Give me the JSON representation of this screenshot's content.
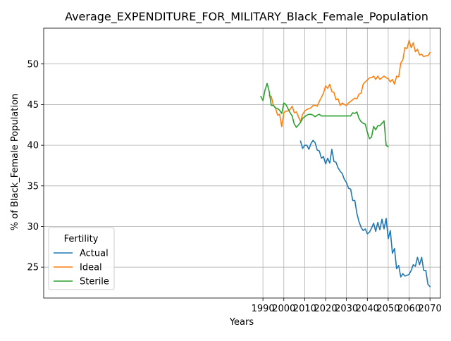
{
  "chart_data": {
    "type": "line",
    "title": "Average_EXPENDITURE_FOR_MILITARY_Black_Female_Population",
    "xlabel": "Years",
    "ylabel": "% of Black_Female Population",
    "xlim": [
      1885,
      2075
    ],
    "ylim": [
      21.2,
      54.4
    ],
    "xticks": [
      1990,
      2000,
      2010,
      2020,
      2030,
      2040,
      2050,
      2060,
      2070
    ],
    "yticks": [
      25,
      30,
      35,
      40,
      45,
      50
    ],
    "grid": true,
    "legend": {
      "title": "Fertility",
      "placement": "lower-left"
    },
    "series": [
      {
        "name": "Actual",
        "color": "#1f77b4",
        "x": [
          2008,
          2009,
          2010,
          2011,
          2012,
          2013,
          2014,
          2015,
          2016,
          2017,
          2018,
          2019,
          2020,
          2021,
          2022,
          2023,
          2024,
          2025,
          2026,
          2027,
          2028,
          2029,
          2030,
          2031,
          2032,
          2033,
          2034,
          2035,
          2036,
          2037,
          2038,
          2039,
          2040,
          2041,
          2042,
          2043,
          2044,
          2045,
          2046,
          2047,
          2048,
          2049,
          2050,
          2051,
          2052,
          2053,
          2054,
          2055,
          2056,
          2057,
          2058,
          2059,
          2060,
          2061,
          2062,
          2063,
          2064,
          2065,
          2066,
          2067,
          2068,
          2069,
          2070
        ],
        "y": [
          40.5,
          39.6,
          40.0,
          40.0,
          39.5,
          40.2,
          40.6,
          40.3,
          39.4,
          39.3,
          38.4,
          38.6,
          37.7,
          38.4,
          37.8,
          39.5,
          38.0,
          37.9,
          37.2,
          36.8,
          36.5,
          35.8,
          35.4,
          34.7,
          34.6,
          33.2,
          33.2,
          31.6,
          30.6,
          29.9,
          29.5,
          29.7,
          29.1,
          29.3,
          29.8,
          30.4,
          29.4,
          30.5,
          29.6,
          30.9,
          29.7,
          31.0,
          28.5,
          29.5,
          26.7,
          27.3,
          24.8,
          25.2,
          23.8,
          24.2,
          23.9,
          24.0,
          24.1,
          24.6,
          25.3,
          25.1,
          26.2,
          25.3,
          26.2,
          24.6,
          24.6,
          22.9,
          22.6
        ]
      },
      {
        "name": "Ideal",
        "color": "#ff7f0e",
        "x": [
          1993,
          1994,
          1995,
          1996,
          1997,
          1998,
          1999,
          2000,
          2001,
          2002,
          2003,
          2004,
          2005,
          2006,
          2007,
          2008,
          2009,
          2010,
          2011,
          2012,
          2013,
          2014,
          2015,
          2016,
          2017,
          2018,
          2019,
          2020,
          2021,
          2022,
          2023,
          2024,
          2025,
          2026,
          2027,
          2028,
          2029,
          2030,
          2031,
          2032,
          2033,
          2034,
          2035,
          2036,
          2037,
          2038,
          2039,
          2040,
          2041,
          2042,
          2043,
          2044,
          2045,
          2046,
          2047,
          2048,
          2049,
          2050,
          2051,
          2052,
          2053,
          2054,
          2055,
          2056,
          2057,
          2058,
          2059,
          2060,
          2061,
          2062,
          2063,
          2064,
          2065,
          2066,
          2067,
          2068,
          2069,
          2070
        ],
        "y": [
          46.1,
          46.0,
          44.9,
          44.6,
          43.7,
          43.8,
          42.3,
          44.0,
          44.2,
          44.2,
          44.4,
          44.8,
          44.0,
          44.1,
          43.5,
          42.9,
          43.8,
          44.2,
          44.4,
          44.5,
          44.6,
          44.9,
          44.9,
          44.8,
          45.4,
          45.9,
          46.4,
          47.3,
          47.0,
          47.5,
          46.6,
          46.5,
          45.6,
          45.7,
          44.9,
          45.2,
          45.0,
          44.9,
          45.2,
          45.4,
          45.6,
          45.8,
          45.7,
          46.3,
          46.4,
          47.5,
          47.8,
          48.0,
          48.3,
          48.3,
          48.5,
          48.1,
          48.5,
          48.1,
          48.3,
          48.5,
          48.3,
          48.2,
          47.8,
          48.1,
          47.5,
          48.5,
          48.4,
          50.1,
          50.5,
          52.0,
          51.9,
          52.9,
          52.0,
          52.6,
          51.5,
          51.8,
          51.1,
          51.2,
          50.9,
          51.0,
          51.0,
          51.4
        ]
      },
      {
        "name": "Sterile",
        "color": "#2ca02c",
        "x": [
          1989,
          1990,
          1991,
          1992,
          1993,
          1994,
          1995,
          1996,
          1997,
          1998,
          1999,
          2000,
          2001,
          2002,
          2003,
          2004,
          2005,
          2006,
          2007,
          2008,
          2009,
          2010,
          2011,
          2012,
          2013,
          2014,
          2015,
          2016,
          2017,
          2018,
          2019,
          2020,
          2021,
          2022,
          2023,
          2024,
          2025,
          2026,
          2027,
          2028,
          2029,
          2030,
          2031,
          2032,
          2033,
          2034,
          2035,
          2036,
          2037,
          2038,
          2039,
          2040,
          2041,
          2042,
          2043,
          2044,
          2045,
          2046,
          2047,
          2048,
          2049,
          2050
        ],
        "y": [
          46.0,
          45.5,
          46.8,
          47.6,
          46.6,
          44.9,
          44.9,
          44.6,
          44.5,
          44.3,
          43.9,
          45.2,
          45.0,
          44.5,
          44.0,
          43.6,
          42.6,
          42.2,
          42.5,
          42.8,
          43.3,
          43.5,
          43.7,
          43.8,
          43.8,
          43.7,
          43.5,
          43.7,
          43.8,
          43.6,
          43.6,
          43.6,
          43.6,
          43.6,
          43.6,
          43.6,
          43.6,
          43.6,
          43.6,
          43.6,
          43.6,
          43.6,
          43.6,
          43.6,
          44.0,
          43.9,
          44.1,
          43.3,
          42.9,
          42.7,
          42.6,
          41.6,
          40.8,
          41.0,
          42.3,
          41.9,
          42.4,
          42.4,
          42.7,
          43.0,
          40.0,
          39.8
        ]
      }
    ]
  }
}
